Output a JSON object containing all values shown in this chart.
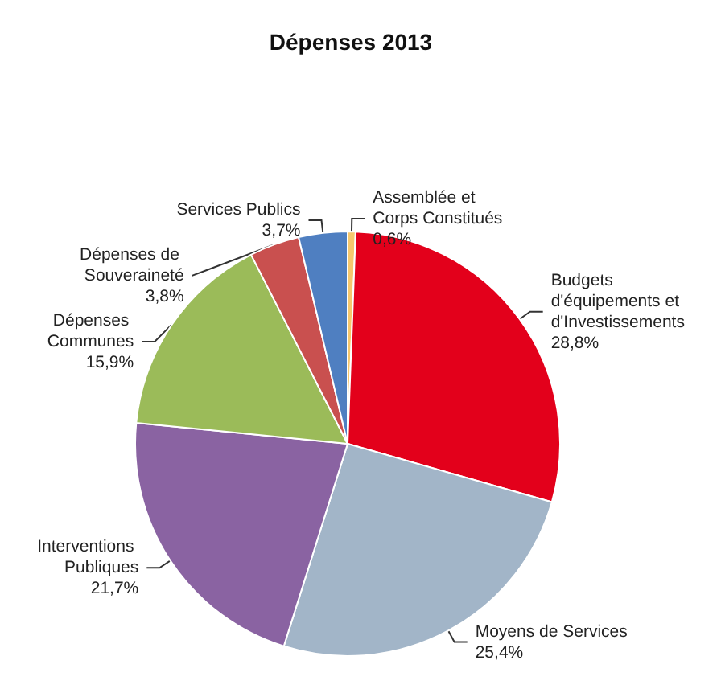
{
  "chart_data": {
    "type": "pie",
    "title": "Dépenses 2013",
    "categories": [
      "Assemblée et Corps Constitués",
      "Budgets d'équipements et d'Investissements",
      "Moyens de Services",
      "Interventions Publiques",
      "Dépenses Communes",
      "Dépenses de Souveraineté",
      "Services Publics"
    ],
    "values": [
      0.6,
      28.8,
      25.4,
      21.7,
      15.9,
      3.8,
      3.7
    ],
    "colors": [
      "#f6c86e",
      "#e3001b",
      "#a2b5c8",
      "#8a63a2",
      "#9bbb59",
      "#c9504f",
      "#4f7fc1"
    ],
    "value_labels": [
      "0,6%",
      "28,8%",
      "25,4%",
      "21,7%",
      "15,9%",
      "3,8%",
      "3,7%"
    ],
    "legend": false
  }
}
